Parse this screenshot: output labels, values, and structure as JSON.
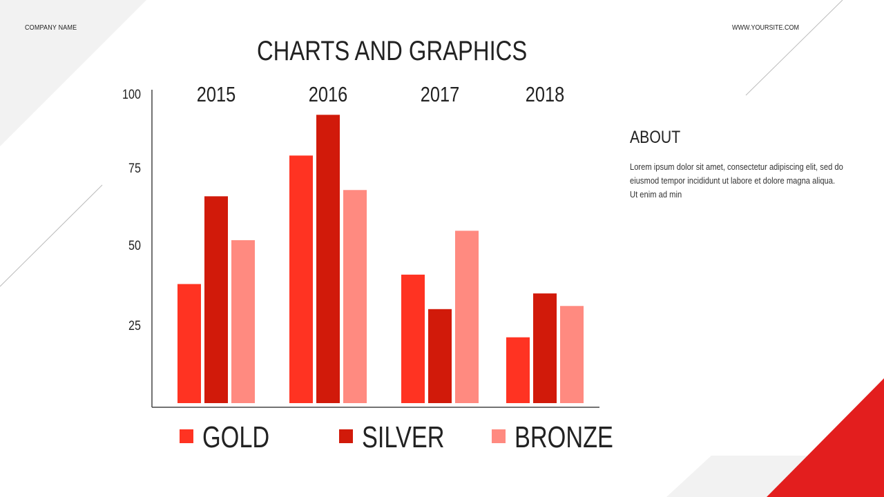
{
  "header": {
    "company_name": "COMPANY NAME",
    "website": "WWW.YOURSITE.COM"
  },
  "about": {
    "title": "ABOUT",
    "text": "Lorem ipsum dolor sit amet, consectetur adipiscing elit, sed do eiusmod tempor incididunt ut labore et dolore magna aliqua. Ut enim ad min"
  },
  "colors": {
    "gold": "#ff3322",
    "silver": "#d11a0a",
    "bronze": "#ff8a80",
    "accent": "#e31e1e",
    "axis": "#444444"
  },
  "chart_data": {
    "type": "bar",
    "title": "CHARTS AND GRAPHICS",
    "categories": [
      "2015",
      "2016",
      "2017",
      "2018"
    ],
    "series": [
      {
        "name": "GOLD",
        "values": [
          38,
          79,
          41,
          21
        ]
      },
      {
        "name": "SILVER",
        "values": [
          66,
          92,
          30,
          35
        ]
      },
      {
        "name": "BRONZE",
        "values": [
          52,
          68,
          55,
          31
        ]
      }
    ],
    "y_ticks": [
      "100",
      "75",
      "50",
      "25"
    ],
    "ylim": [
      0,
      100
    ],
    "legend_position": "bottom",
    "grid": false
  }
}
